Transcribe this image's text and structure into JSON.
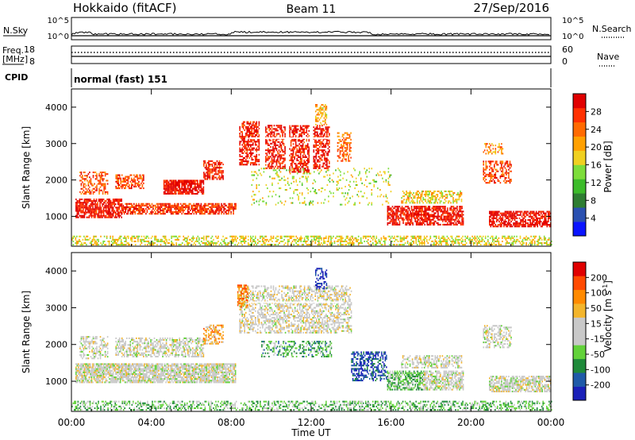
{
  "header": {
    "station": "Hokkaido (fitACF)",
    "beam": "Beam 11",
    "date": "27/Sep/2016"
  },
  "aux_panels": {
    "nsky_label": "N.Sky",
    "nsky_ticks": [
      "10^5",
      "10^0"
    ],
    "nsearch_label": "N.Search",
    "nsearch_ticks": [
      "10^5",
      "10^0"
    ],
    "freq_label_1": "Freq.",
    "freq_label_2": "[MHz]",
    "freq_ticks": [
      "18",
      "8"
    ],
    "nave_label": "Nave",
    "nave_ticks": [
      "60",
      "0"
    ],
    "cpid_label": "CPID",
    "cpid_value": "normal (fast) 151"
  },
  "chart_data": [
    {
      "type": "heatmap",
      "name": "power",
      "ylabel": "Slant Range [km]",
      "ylim": [
        180,
        4500
      ],
      "yticks": [
        "1000",
        "2000",
        "3000",
        "4000"
      ],
      "colorbar_label": "Power [dB]",
      "colorbar_ticks": [
        "4",
        "8",
        "12",
        "16",
        "20",
        "24",
        "28"
      ],
      "colorbar_colors": [
        "#0a14ff",
        "#2a50b0",
        "#2e7d32",
        "#3cbb2a",
        "#7ddd3a",
        "#f0d020",
        "#ffa000",
        "#ff6a00",
        "#ff3000",
        "#e00000"
      ],
      "regions": [
        {
          "t0": 0.2,
          "t1": 2.5,
          "r0": 950,
          "r1": 1450,
          "c": 0.93,
          "d": 0.8
        },
        {
          "t0": 2.5,
          "t1": 8.2,
          "r0": 1050,
          "r1": 1350,
          "c": 0.85,
          "d": 0.7
        },
        {
          "t0": 0.4,
          "t1": 1.8,
          "r0": 1600,
          "r1": 2200,
          "c": 0.8,
          "d": 0.45
        },
        {
          "t0": 2.2,
          "t1": 3.6,
          "r0": 1750,
          "r1": 2150,
          "c": 0.82,
          "d": 0.6
        },
        {
          "t0": 4.6,
          "t1": 6.6,
          "r0": 1600,
          "r1": 2000,
          "c": 0.93,
          "d": 0.85
        },
        {
          "t0": 6.6,
          "t1": 7.6,
          "r0": 2000,
          "r1": 2500,
          "c": 0.88,
          "d": 0.65
        },
        {
          "t0": 8.4,
          "t1": 9.4,
          "r0": 2400,
          "r1": 3600,
          "c": 0.9,
          "d": 0.6
        },
        {
          "t0": 9.7,
          "t1": 10.7,
          "r0": 2300,
          "r1": 3500,
          "c": 0.9,
          "d": 0.6
        },
        {
          "t0": 10.9,
          "t1": 11.9,
          "r0": 2200,
          "r1": 3500,
          "c": 0.9,
          "d": 0.6
        },
        {
          "t0": 12.1,
          "t1": 12.9,
          "r0": 2300,
          "r1": 3500,
          "c": 0.9,
          "d": 0.6
        },
        {
          "t0": 13.3,
          "t1": 14.0,
          "r0": 2500,
          "r1": 3300,
          "c": 0.75,
          "d": 0.55
        },
        {
          "t0": 12.2,
          "t1": 12.8,
          "r0": 3500,
          "r1": 4050,
          "c": 0.62,
          "d": 0.45
        },
        {
          "t0": 15.8,
          "t1": 19.6,
          "r0": 750,
          "r1": 1250,
          "c": 0.93,
          "d": 0.75
        },
        {
          "t0": 16.5,
          "t1": 19.5,
          "r0": 1350,
          "r1": 1700,
          "c": 0.58,
          "d": 0.5
        },
        {
          "t0": 20.9,
          "t1": 24.0,
          "r0": 700,
          "r1": 1150,
          "c": 0.93,
          "d": 0.7
        },
        {
          "t0": 20.6,
          "t1": 22.0,
          "r0": 1900,
          "r1": 2500,
          "c": 0.82,
          "d": 0.5
        },
        {
          "t0": 20.6,
          "t1": 21.6,
          "r0": 2700,
          "r1": 3000,
          "c": 0.7,
          "d": 0.4
        },
        {
          "t0": 0.0,
          "t1": 24.0,
          "r0": 200,
          "r1": 450,
          "c": 0.55,
          "d": 0.45
        },
        {
          "t0": 9.0,
          "t1": 16.0,
          "r0": 1300,
          "r1": 2300,
          "c": 0.5,
          "d": 0.12
        }
      ]
    },
    {
      "type": "heatmap",
      "name": "velocity",
      "ylabel": "Slant Range [km]",
      "ylim": [
        180,
        4500
      ],
      "yticks": [
        "1000",
        "2000",
        "3000",
        "4000"
      ],
      "colorbar_label": "Velocity [m s^-1]",
      "colorbar_ticks": [
        "200",
        "100",
        "50",
        "15",
        "-15",
        "-50",
        "-100",
        "-200"
      ],
      "colorbar_colors": [
        "#1a20b8",
        "#1f5aa8",
        "#1f8a3a",
        "#62d23a",
        "#c8c8c8",
        "#c8c8c8",
        "#f3b52c",
        "#ff8a00",
        "#ff4a00",
        "#e00000"
      ],
      "regions": [
        {
          "t0": 0.2,
          "t1": 8.2,
          "r0": 950,
          "r1": 1450,
          "c": 0.5,
          "d": 0.8
        },
        {
          "t0": 0.4,
          "t1": 1.8,
          "r0": 1600,
          "r1": 2200,
          "c": 0.5,
          "d": 0.45
        },
        {
          "t0": 2.2,
          "t1": 6.6,
          "r0": 1650,
          "r1": 2150,
          "c": 0.5,
          "d": 0.55
        },
        {
          "t0": 6.6,
          "t1": 7.6,
          "r0": 2000,
          "r1": 2500,
          "c": 0.7,
          "d": 0.55
        },
        {
          "t0": 8.4,
          "t1": 14.0,
          "r0": 2300,
          "r1": 3600,
          "c": 0.52,
          "d": 0.5
        },
        {
          "t0": 8.3,
          "t1": 8.8,
          "r0": 3000,
          "r1": 3600,
          "c": 0.75,
          "d": 0.6
        },
        {
          "t0": 12.2,
          "t1": 12.8,
          "r0": 3500,
          "r1": 4050,
          "c": 0.05,
          "d": 0.45
        },
        {
          "t0": 9.5,
          "t1": 13.0,
          "r0": 1650,
          "r1": 2100,
          "c": 0.3,
          "d": 0.4
        },
        {
          "t0": 14.0,
          "t1": 15.8,
          "r0": 1000,
          "r1": 1800,
          "c": 0.12,
          "d": 0.5
        },
        {
          "t0": 15.8,
          "t1": 17.6,
          "r0": 750,
          "r1": 1250,
          "c": 0.35,
          "d": 0.7
        },
        {
          "t0": 17.6,
          "t1": 19.6,
          "r0": 750,
          "r1": 1250,
          "c": 0.5,
          "d": 0.7
        },
        {
          "t0": 16.5,
          "t1": 19.5,
          "r0": 1350,
          "r1": 1700,
          "c": 0.5,
          "d": 0.5
        },
        {
          "t0": 20.9,
          "t1": 24.0,
          "r0": 700,
          "r1": 1150,
          "c": 0.5,
          "d": 0.7
        },
        {
          "t0": 20.6,
          "t1": 22.0,
          "r0": 1900,
          "r1": 2500,
          "c": 0.5,
          "d": 0.5
        },
        {
          "t0": 0.0,
          "t1": 24.0,
          "r0": 200,
          "r1": 450,
          "c": 0.35,
          "d": 0.45
        }
      ]
    }
  ],
  "time_axis": {
    "label": "Time UT",
    "ticks": [
      "00:00",
      "04:00",
      "08:00",
      "12:00",
      "16:00",
      "20:00",
      "00:00"
    ]
  }
}
